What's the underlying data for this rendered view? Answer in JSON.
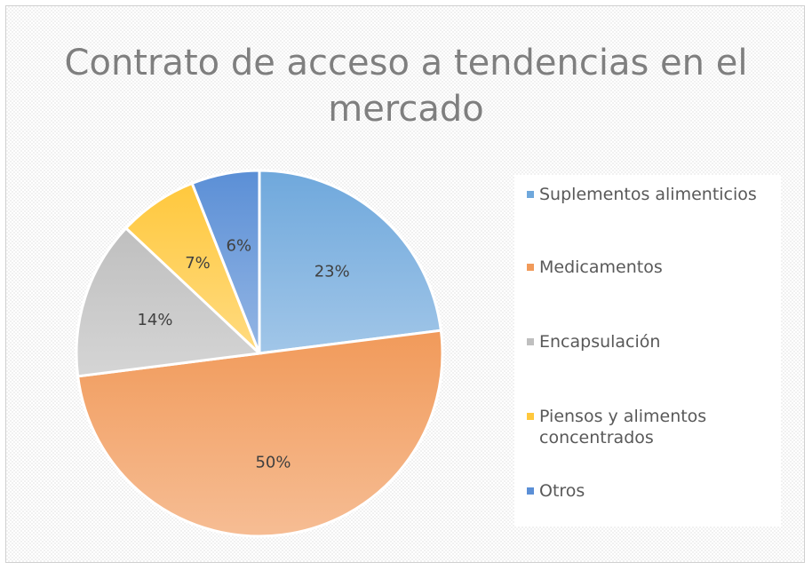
{
  "chart_data": {
    "type": "pie",
    "title": "Contrato de acceso a tendencias en el mercado",
    "categories": [
      "Suplementos alimenticios",
      "Medicamentos",
      "Encapsulación",
      "Piensos y alimentos concentrados",
      "Otros"
    ],
    "values": [
      23,
      50,
      14,
      7,
      6
    ],
    "labels": [
      "23%",
      "50%",
      "14%",
      "7%",
      "6%"
    ],
    "colors": [
      "#6fa8dc",
      "#f19a5a",
      "#bfbfbf",
      "#ffc83d",
      "#5b8fd6"
    ],
    "legend_position": "right"
  }
}
